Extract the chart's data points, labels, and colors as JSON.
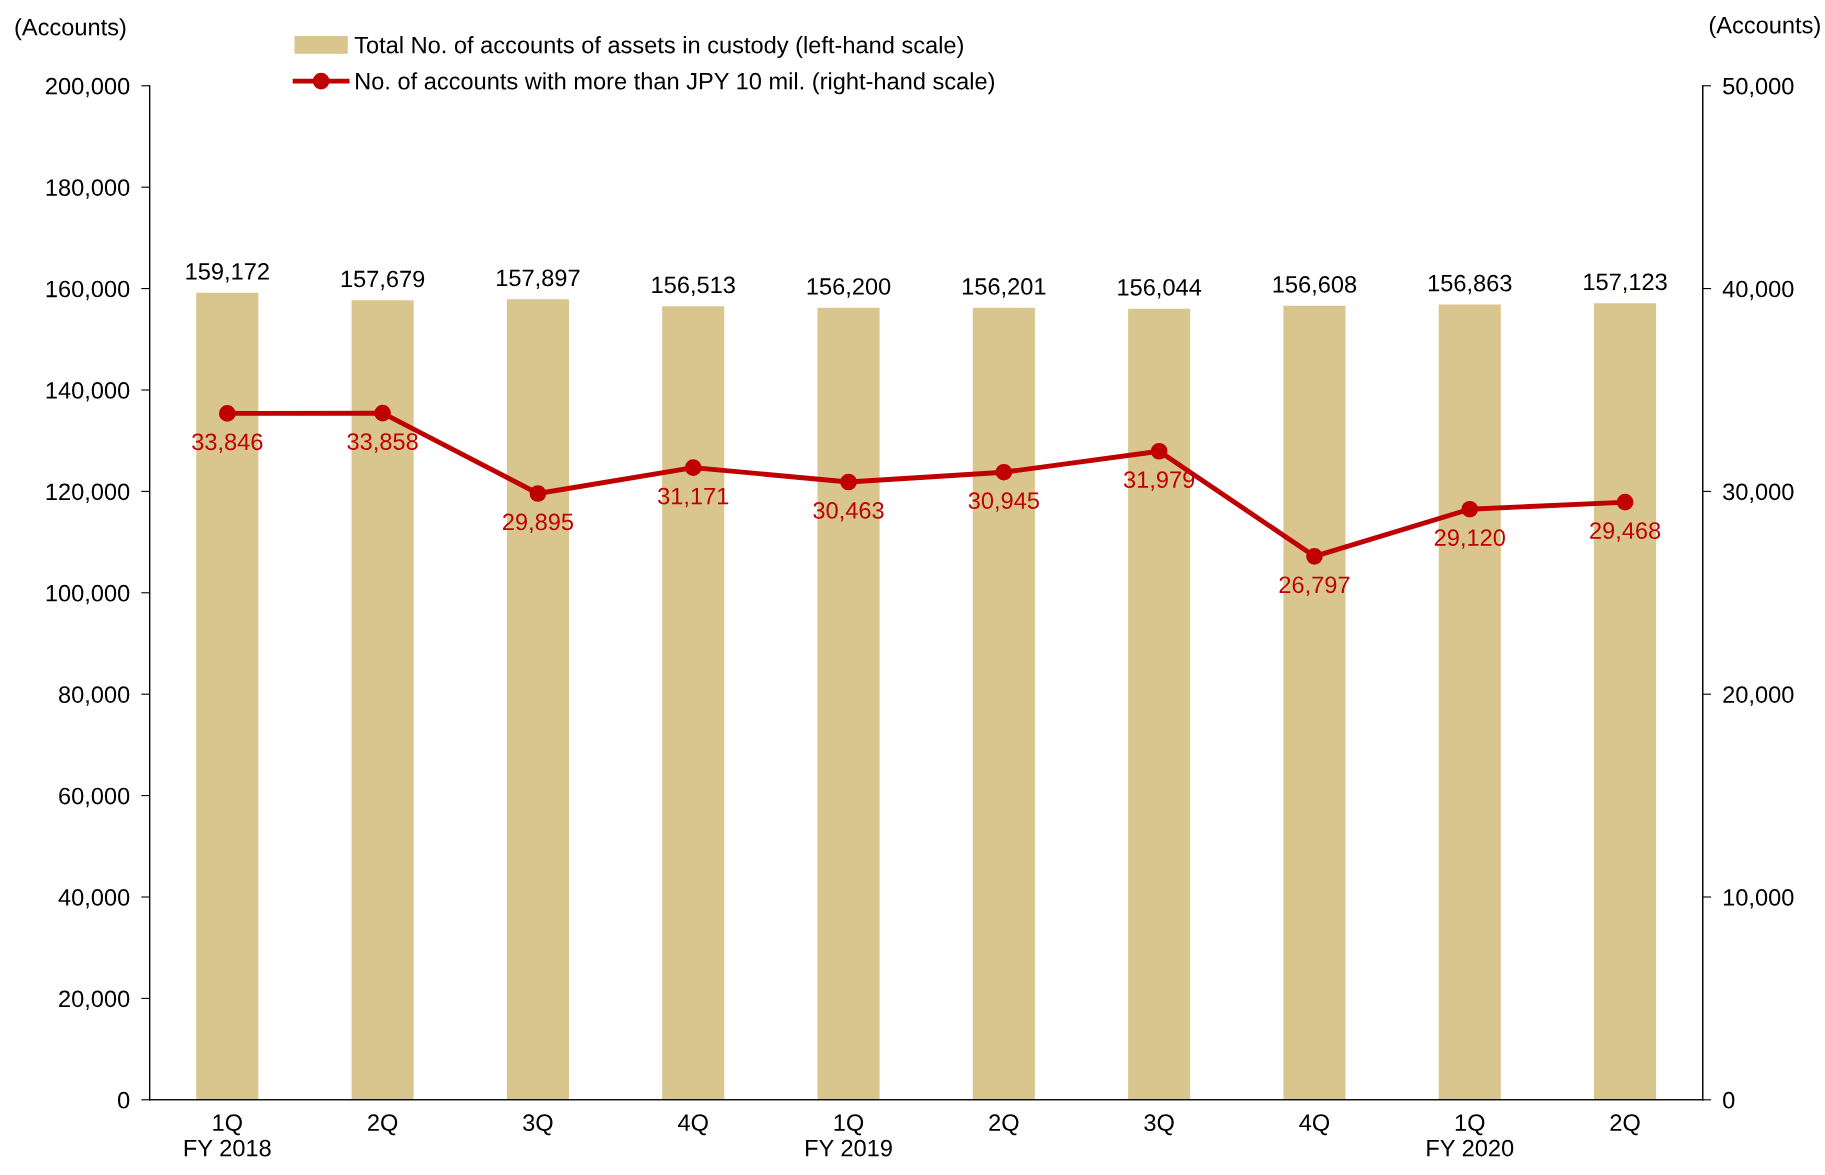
{
  "chart_data": {
    "type": "bar",
    "categories": [
      "1Q\nFY 2018",
      "2Q",
      "3Q",
      "4Q",
      "1Q\nFY 2019",
      "2Q",
      "3Q",
      "4Q",
      "1Q\nFY 2020",
      "2Q"
    ],
    "ylabel": "(Accounts)",
    "y2label": "(Accounts)",
    "series": [
      {
        "name": "Total No. of accounts of assets in custody (left-hand scale)",
        "color": "#d9c68e",
        "values": [
          159172,
          157679,
          157897,
          156513,
          156200,
          156201,
          156044,
          156608,
          156863,
          157123
        ],
        "value_labels": [
          "159,172",
          "157,679",
          "157,897",
          "156,513",
          "156,200",
          "156,201",
          "156,044",
          "156,608",
          "156,863",
          "157,123"
        ]
      },
      {
        "name": "No. of accounts with more than JPY 10 mil. (right-hand scale)",
        "type": "line",
        "axis": "y2",
        "color": "#c00000",
        "marker": "circle",
        "values": [
          33846,
          33858,
          29895,
          31171,
          30463,
          30945,
          31979,
          26797,
          29120,
          29468
        ],
        "value_labels": [
          "33,846",
          "33,858",
          "29,895",
          "31,171",
          "30,463",
          "30,945",
          "31,979",
          "26,797",
          "29,120",
          "29,468"
        ]
      }
    ],
    "ylim": [
      0,
      200000
    ],
    "yticks": [
      {
        "value": 0,
        "label": "0"
      },
      {
        "value": 20000,
        "label": "20,000"
      },
      {
        "value": 40000,
        "label": "40,000"
      },
      {
        "value": 60000,
        "label": "60,000"
      },
      {
        "value": 80000,
        "label": "80,000"
      },
      {
        "value": 100000,
        "label": "100,000"
      },
      {
        "value": 120000,
        "label": "120,000"
      },
      {
        "value": 140000,
        "label": "140,000"
      },
      {
        "value": 160000,
        "label": "160,000"
      },
      {
        "value": 180000,
        "label": "180,000"
      },
      {
        "value": 200000,
        "label": "200,000"
      }
    ],
    "y2lim": [
      0,
      50000
    ],
    "y2ticks": [
      {
        "value": 0,
        "label": "0"
      },
      {
        "value": 10000,
        "label": "10,000"
      },
      {
        "value": 20000,
        "label": "20,000"
      },
      {
        "value": 30000,
        "label": "30,000"
      },
      {
        "value": 40000,
        "label": "40,000"
      },
      {
        "value": 50000,
        "label": "50,000"
      }
    ],
    "legend": "top left",
    "grid": false
  }
}
